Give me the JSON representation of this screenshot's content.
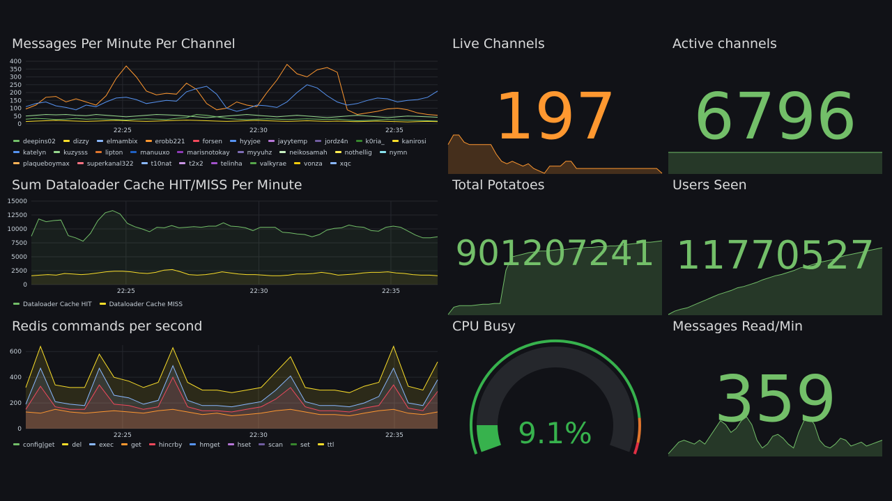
{
  "panels": {
    "messages_per_minute": {
      "title": "Messages Per Minute Per Channel",
      "legend": [
        {
          "name": "deepins02",
          "color": "#73bf69"
        },
        {
          "name": "dizzy",
          "color": "#fade2a"
        },
        {
          "name": "elmambix",
          "color": "#8ab8ff"
        },
        {
          "name": "erobb221",
          "color": "#ff9830"
        },
        {
          "name": "forsen",
          "color": "#f2495c"
        },
        {
          "name": "hyyjoe",
          "color": "#5794f2"
        },
        {
          "name": "jayytemp",
          "color": "#b877d9"
        },
        {
          "name": "jordz4n",
          "color": "#705da0"
        },
        {
          "name": "k0ria_",
          "color": "#37872d"
        },
        {
          "name": "kanirosi",
          "color": "#fade2a"
        },
        {
          "name": "katelyn",
          "color": "#5794f2"
        },
        {
          "name": "kuzysss",
          "color": "#96d98d"
        },
        {
          "name": "lipton",
          "color": "#e0752d"
        },
        {
          "name": "manuuxo",
          "color": "#1f60c4"
        },
        {
          "name": "marisnotokay",
          "color": "#8f3bb8"
        },
        {
          "name": "myyuhz",
          "color": "#806eb7"
        },
        {
          "name": "neikosamah",
          "color": "#c8f2c2"
        },
        {
          "name": "nothellig",
          "color": "#ffee52"
        },
        {
          "name": "nymn",
          "color": "#8ae4f0"
        },
        {
          "name": "plaqueboymax",
          "color": "#ffb357"
        },
        {
          "name": "superkanal322",
          "color": "#ff7383"
        },
        {
          "name": "t10nat",
          "color": "#8ab8ff"
        },
        {
          "name": "t2x2",
          "color": "#ca95e5"
        },
        {
          "name": "telinha",
          "color": "#a352cc"
        },
        {
          "name": "valkyrae",
          "color": "#56a64b"
        },
        {
          "name": "vonza",
          "color": "#f2cc0c"
        },
        {
          "name": "xqc",
          "color": "#8ab8ff"
        }
      ]
    },
    "live_channels": {
      "title": "Live Channels",
      "value": "197",
      "color": "#ff9830"
    },
    "active_channels": {
      "title": "Active channels",
      "value": "6796",
      "color": "#73bf69"
    },
    "cache_hit_miss": {
      "title": "Sum Dataloader Cache HIT/MISS Per Minute",
      "legend": [
        {
          "name": "Dataloader Cache HIT",
          "color": "#73bf69"
        },
        {
          "name": "Dataloader Cache MISS",
          "color": "#fade2a"
        }
      ]
    },
    "total_potatoes": {
      "title": "Total Potatoes",
      "value": "901207241",
      "color": "#73bf69"
    },
    "users_seen": {
      "title": "Users Seen",
      "value": "11770527",
      "color": "#73bf69"
    },
    "redis_commands": {
      "title": "Redis commands per second",
      "legend": [
        {
          "name": "config|get",
          "color": "#73bf69"
        },
        {
          "name": "del",
          "color": "#fade2a"
        },
        {
          "name": "exec",
          "color": "#8ab8ff"
        },
        {
          "name": "get",
          "color": "#ff9830"
        },
        {
          "name": "hincrby",
          "color": "#f2495c"
        },
        {
          "name": "hmget",
          "color": "#5794f2"
        },
        {
          "name": "hset",
          "color": "#b877d9"
        },
        {
          "name": "scan",
          "color": "#705da0"
        },
        {
          "name": "set",
          "color": "#37872d"
        },
        {
          "name": "ttl",
          "color": "#fade2a"
        }
      ]
    },
    "cpu_busy": {
      "title": "CPU Busy",
      "value": "9.1%",
      "percent": 9.1,
      "color": "#37b24d"
    },
    "messages_read": {
      "title": "Messages Read/Min",
      "value": "359",
      "color": "#73bf69"
    }
  },
  "chart_data": [
    {
      "type": "line",
      "title": "Messages Per Minute Per Channel",
      "x_ticks": [
        "22:25",
        "22:30",
        "22:35"
      ],
      "y_ticks": [
        0,
        50,
        100,
        150,
        200,
        250,
        300,
        350,
        400
      ],
      "ylim": [
        0,
        400
      ],
      "series": [
        {
          "name": "erobb221",
          "color": "#ff9830",
          "values": [
            95,
            120,
            170,
            175,
            140,
            160,
            140,
            120,
            180,
            290,
            370,
            300,
            210,
            185,
            195,
            190,
            260,
            220,
            130,
            90,
            100,
            140,
            120,
            110,
            200,
            280,
            380,
            320,
            300,
            345,
            360,
            330,
            90,
            60,
            70,
            80,
            95,
            100,
            90,
            70,
            60,
            55
          ]
        },
        {
          "name": "katelyn",
          "color": "#5794f2",
          "values": [
            110,
            130,
            140,
            115,
            105,
            90,
            120,
            110,
            140,
            165,
            170,
            155,
            130,
            140,
            150,
            145,
            205,
            225,
            240,
            190,
            100,
            80,
            95,
            120,
            115,
            105,
            140,
            200,
            250,
            230,
            180,
            140,
            120,
            130,
            150,
            165,
            160,
            140,
            150,
            155,
            170,
            210
          ]
        },
        {
          "name": "kuzysss",
          "color": "#96d98d",
          "values": [
            50,
            55,
            60,
            58,
            60,
            55,
            52,
            60,
            55,
            50,
            45,
            50,
            55,
            60,
            58,
            55,
            50,
            45,
            40,
            45,
            50,
            55,
            60,
            55,
            50,
            45,
            50,
            55,
            50,
            45,
            40,
            45,
            50,
            55,
            50,
            45,
            40,
            45,
            50,
            48,
            45,
            42
          ]
        },
        {
          "name": "deepins02",
          "color": "#73bf69",
          "values": [
            30,
            35,
            32,
            28,
            30,
            35,
            30,
            32,
            30,
            28,
            25,
            30,
            32,
            30,
            28,
            35,
            40,
            60,
            55,
            45,
            35,
            30,
            28,
            30,
            32,
            30,
            28,
            30,
            32,
            30,
            28,
            30,
            25,
            20,
            22,
            25,
            28,
            26,
            24,
            22,
            20,
            18
          ]
        },
        {
          "name": "dizzy",
          "color": "#fade2a",
          "values": [
            15,
            18,
            20,
            22,
            20,
            18,
            16,
            18,
            20,
            22,
            20,
            18,
            16,
            18,
            20,
            22,
            24,
            22,
            20,
            18,
            16,
            18,
            20,
            22,
            20,
            18,
            16,
            18,
            20,
            18,
            16,
            18,
            16,
            14,
            16,
            18,
            16,
            14,
            12,
            14,
            16,
            14
          ]
        }
      ]
    },
    {
      "type": "line",
      "title": "Sum Dataloader Cache HIT/MISS Per Minute",
      "x_ticks": [
        "22:25",
        "22:30",
        "22:35"
      ],
      "y_ticks": [
        0,
        2500,
        5000,
        7500,
        10000,
        12500,
        15000
      ],
      "ylim": [
        0,
        15000
      ],
      "series": [
        {
          "name": "Dataloader Cache HIT",
          "color": "#73bf69",
          "values": [
            8700,
            11800,
            11300,
            11500,
            11600,
            8800,
            8400,
            7800,
            9200,
            11500,
            12900,
            13300,
            12700,
            11000,
            10400,
            10000,
            9500,
            10300,
            10200,
            10600,
            10200,
            10300,
            10400,
            10300,
            10500,
            10500,
            11100,
            10500,
            10400,
            10200,
            9700,
            10300,
            10300,
            10300,
            9400,
            9300,
            9100,
            9000,
            8600,
            9000,
            9800,
            10100,
            10200,
            10700,
            10400,
            10300,
            9700,
            9600,
            10300,
            10500,
            10300,
            9600,
            8900,
            8400,
            8400,
            8600
          ]
        },
        {
          "name": "Dataloader Cache MISS",
          "color": "#fade2a",
          "values": [
            1600,
            1700,
            1800,
            1700,
            2000,
            1900,
            1800,
            1900,
            2100,
            2300,
            2400,
            2400,
            2300,
            2100,
            2000,
            2200,
            2600,
            2700,
            2300,
            1800,
            1700,
            1800,
            2000,
            2300,
            2100,
            1900,
            1800,
            1800,
            1700,
            1600,
            1600,
            1700,
            1900,
            1900,
            2000,
            2200,
            2000,
            1700,
            1800,
            1900,
            2100,
            2200,
            2200,
            2300,
            2100,
            2000,
            1800,
            1700,
            1700,
            1600
          ]
        }
      ]
    },
    {
      "type": "area",
      "title": "Redis commands per second",
      "x_ticks": [
        "22:25",
        "22:30",
        "22:35"
      ],
      "y_ticks": [
        0,
        200,
        400,
        600
      ],
      "ylim": [
        0,
        650
      ],
      "series": [
        {
          "name": "del",
          "color": "#fade2a",
          "values": [
            320,
            640,
            340,
            320,
            320,
            580,
            400,
            370,
            320,
            360,
            630,
            360,
            300,
            300,
            280,
            300,
            320,
            440,
            560,
            320,
            300,
            300,
            280,
            330,
            360,
            640,
            330,
            300,
            520
          ]
        },
        {
          "name": "exec",
          "color": "#8ab8ff",
          "values": [
            190,
            470,
            210,
            190,
            180,
            470,
            260,
            240,
            190,
            220,
            490,
            220,
            180,
            180,
            170,
            190,
            210,
            300,
            410,
            210,
            180,
            180,
            170,
            200,
            250,
            470,
            200,
            180,
            380
          ]
        },
        {
          "name": "hincrby",
          "color": "#f2495c",
          "values": [
            150,
            330,
            170,
            150,
            150,
            340,
            190,
            180,
            150,
            170,
            400,
            170,
            140,
            140,
            130,
            150,
            170,
            230,
            320,
            170,
            140,
            140,
            130,
            160,
            180,
            340,
            160,
            140,
            290
          ]
        },
        {
          "name": "get",
          "color": "#ff9830",
          "values": [
            130,
            120,
            150,
            130,
            120,
            130,
            140,
            130,
            120,
            140,
            150,
            130,
            110,
            120,
            100,
            110,
            120,
            140,
            150,
            130,
            110,
            110,
            100,
            120,
            140,
            150,
            120,
            110,
            130
          ]
        }
      ]
    }
  ],
  "sparklines": {
    "live": [
      60,
      80,
      80,
      65,
      60,
      60,
      60,
      60,
      60,
      40,
      25,
      20,
      25,
      20,
      15,
      20,
      10,
      5,
      0,
      15,
      15,
      15,
      25,
      25,
      10,
      10,
      10,
      10,
      10,
      10,
      10,
      10,
      10,
      10,
      10,
      10,
      10,
      10,
      10,
      10,
      0
    ],
    "active": [
      90,
      90,
      90,
      90,
      90,
      90,
      90,
      90,
      90,
      90,
      90,
      90,
      90,
      90,
      90,
      90,
      90,
      90,
      90,
      90,
      90,
      90,
      90,
      90,
      90,
      90,
      90,
      90,
      90,
      90
    ],
    "potatoes": [
      0,
      10,
      12,
      12,
      12,
      13,
      14,
      14,
      15,
      15,
      60,
      78,
      80,
      82,
      84,
      85,
      86,
      86,
      87,
      88,
      88,
      89,
      90,
      90,
      91,
      91,
      92,
      92,
      93,
      93,
      94,
      95,
      96,
      97,
      98,
      98,
      99,
      100
    ],
    "users": [
      0,
      5,
      8,
      10,
      14,
      18,
      22,
      26,
      30,
      33,
      36,
      40,
      42,
      45,
      48,
      52,
      55,
      58,
      60,
      63,
      66,
      70,
      72,
      75,
      78,
      80,
      82,
      85,
      88,
      90,
      92,
      94,
      96,
      98,
      100
    ],
    "msgread": [
      5,
      20,
      35,
      40,
      35,
      30,
      40,
      30,
      50,
      70,
      90,
      80,
      60,
      70,
      90,
      100,
      80,
      40,
      20,
      30,
      50,
      55,
      45,
      30,
      20,
      60,
      90,
      100,
      80,
      40,
      25,
      20,
      30,
      45,
      40,
      25,
      30,
      35,
      25,
      30,
      35,
      40
    ]
  }
}
